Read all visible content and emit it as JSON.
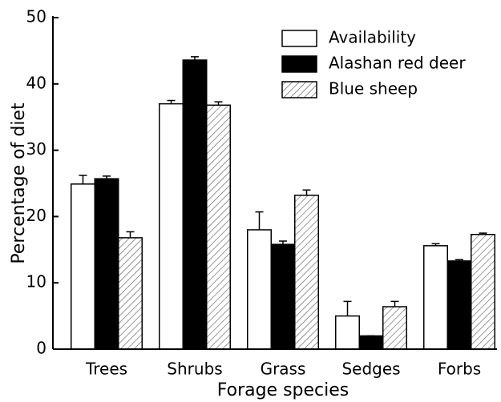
{
  "chart_data": {
    "type": "bar",
    "x_label": "Forage species",
    "y_label": "Percentage of diet",
    "categories": [
      "Trees",
      "Shrubs",
      "Grass",
      "Sedges",
      "Forbs"
    ],
    "series": [
      {
        "name": "Availability",
        "color": "#ffffff",
        "hatch": false,
        "values": [
          24.9,
          37.0,
          18.0,
          5.0,
          15.6
        ],
        "errors": [
          1.3,
          0.5,
          2.7,
          2.2,
          0.3
        ]
      },
      {
        "name": "Alashan red deer",
        "color": "#000000",
        "hatch": false,
        "values": [
          25.7,
          43.6,
          15.8,
          2.0,
          13.3
        ],
        "errors": [
          0.4,
          0.5,
          0.5,
          0.0,
          0.2
        ]
      },
      {
        "name": "Blue sheep",
        "color": "#ffffff",
        "hatch": true,
        "values": [
          16.8,
          36.8,
          23.2,
          6.4,
          17.3
        ],
        "errors": [
          0.9,
          0.5,
          0.8,
          0.8,
          0.2
        ]
      }
    ],
    "ylim": [
      0,
      50
    ],
    "yticks": [
      0,
      10,
      20,
      30,
      40,
      50
    ],
    "legend": "upper right",
    "grid": false
  }
}
